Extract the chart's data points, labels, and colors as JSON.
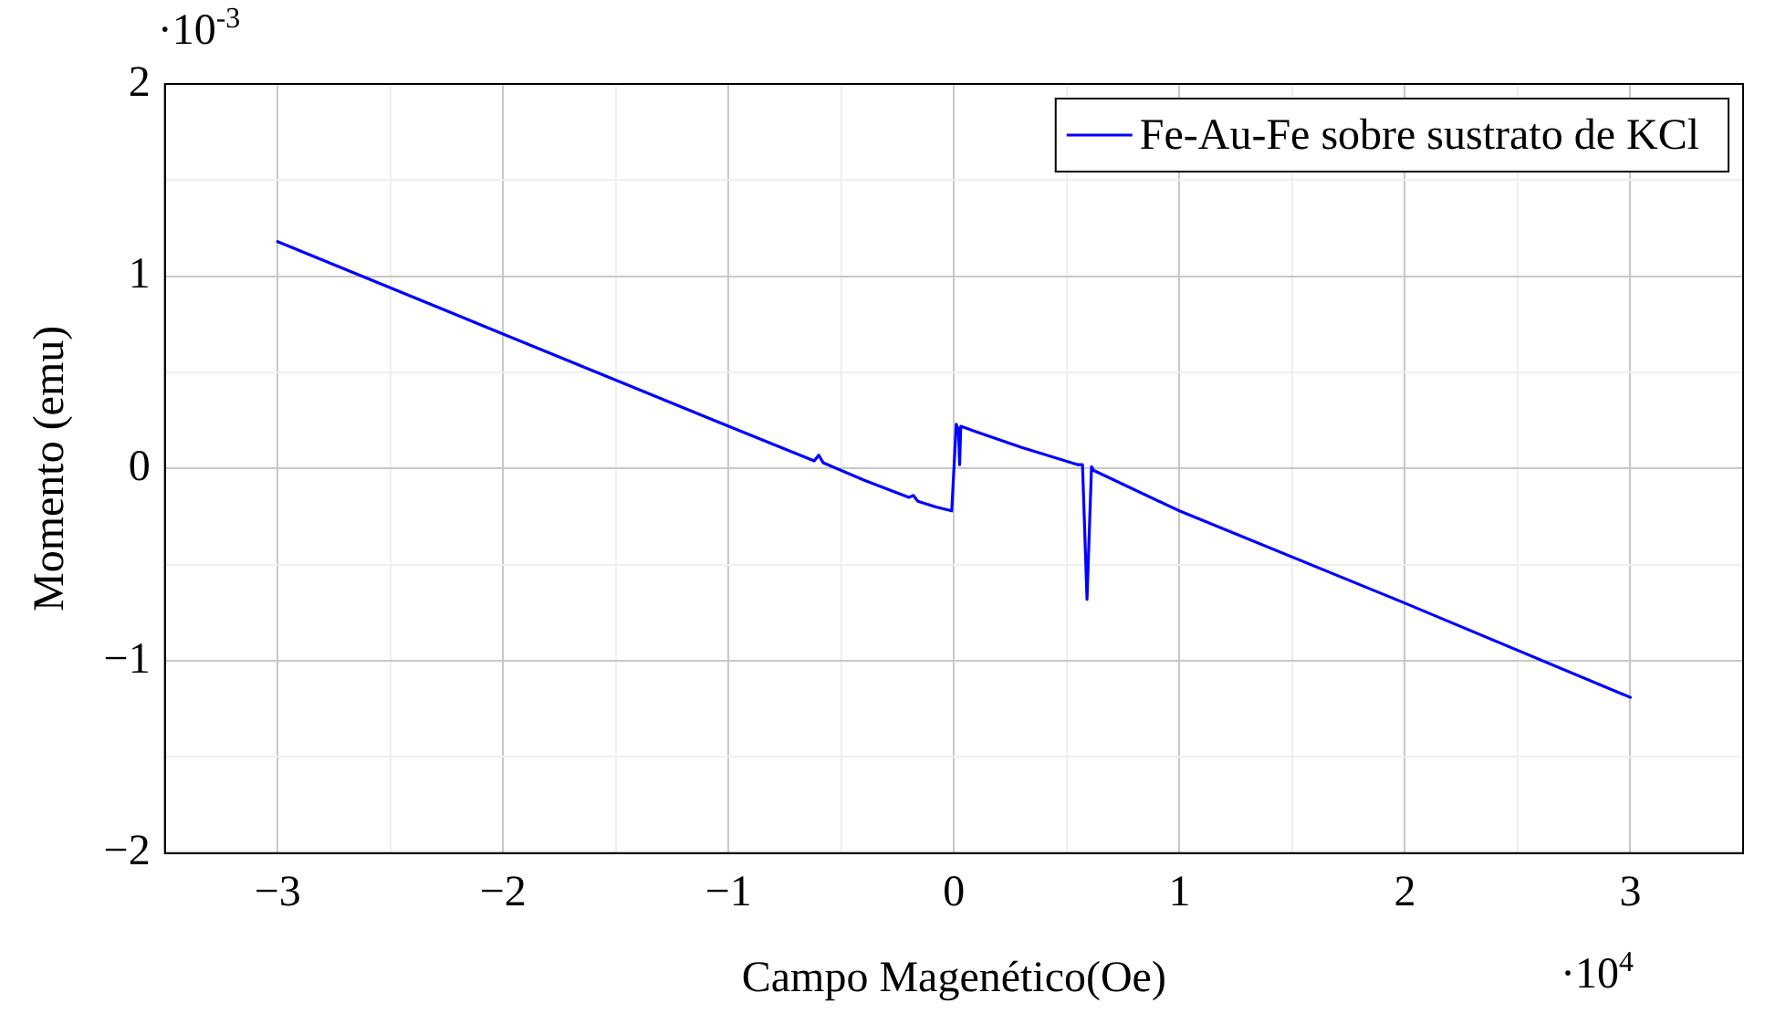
{
  "chart_data": {
    "type": "line",
    "xlabel": "Campo Magenético(Oe)",
    "ylabel": "Momento (emu)",
    "annotations": [
      "·10$^{-3}$",
      "·10$^{4}$"
    ],
    "x": [
      -3,
      -2,
      -1,
      -0.62,
      -0.6,
      -0.58,
      -0.4,
      -0.2,
      -0.18,
      -0.16,
      -0.08,
      -0.01,
      0.01,
      0.02,
      0.025,
      0.03,
      0.1,
      0.3,
      0.55,
      0.57,
      0.59,
      0.61,
      0.62,
      1,
      2,
      3
    ],
    "series": [
      {
        "name": "Fe-Au-Fe sobre sustrato de KCl",
        "color": "#0000ff",
        "values": [
          1.18,
          0.7,
          0.22,
          0.04,
          0.07,
          0.03,
          -0.06,
          -0.15,
          -0.14,
          -0.17,
          -0.2,
          -0.22,
          0.23,
          0.2,
          0.02,
          0.22,
          0.19,
          0.11,
          0.02,
          0.02,
          -0.68,
          0.01,
          -0.01,
          -0.22,
          -0.7,
          -1.19
        ]
      }
    ],
    "xlim": [
      -3.5,
      3.5
    ],
    "xticks": [
      {
        "value": -3,
        "label": "−3"
      },
      {
        "value": -2.5,
        "label": null
      },
      {
        "value": -2,
        "label": "−2"
      },
      {
        "value": -1.5,
        "label": null
      },
      {
        "value": -1,
        "label": "−1"
      },
      {
        "value": -0.5,
        "label": null
      },
      0,
      {
        "value": 0.5,
        "label": null
      },
      1,
      {
        "value": 1.5,
        "label": null
      },
      2,
      {
        "value": 2.5,
        "label": null
      },
      3
    ],
    "ylim": [
      -2,
      2
    ],
    "yticks": [
      {
        "value": -2,
        "label": "−2"
      },
      {
        "value": -1.5,
        "label": null
      },
      {
        "value": -1,
        "label": "−1"
      },
      {
        "value": -0.5,
        "label": null
      },
      0,
      {
        "value": 0.5,
        "label": null
      },
      1,
      {
        "value": 1.5,
        "label": null
      },
      2
    ],
    "grid": true,
    "legend": "top right",
    "marker": "none",
    "line_style": "solid"
  }
}
